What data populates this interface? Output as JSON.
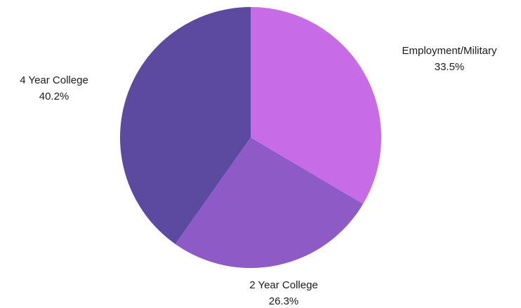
{
  "chart_data": {
    "type": "pie",
    "start_angle_deg": 0,
    "direction": "clockwise",
    "slices": [
      {
        "label": "Employment/Military",
        "value": 33.5,
        "value_label": "33.5%",
        "color": "#c76be6"
      },
      {
        "label": "2 Year College",
        "value": 26.3,
        "value_label": "26.3%",
        "color": "#8e5bc6"
      },
      {
        "label": "4 Year College",
        "value": 40.2,
        "value_label": "40.2%",
        "color": "#5b4a9f"
      }
    ]
  }
}
